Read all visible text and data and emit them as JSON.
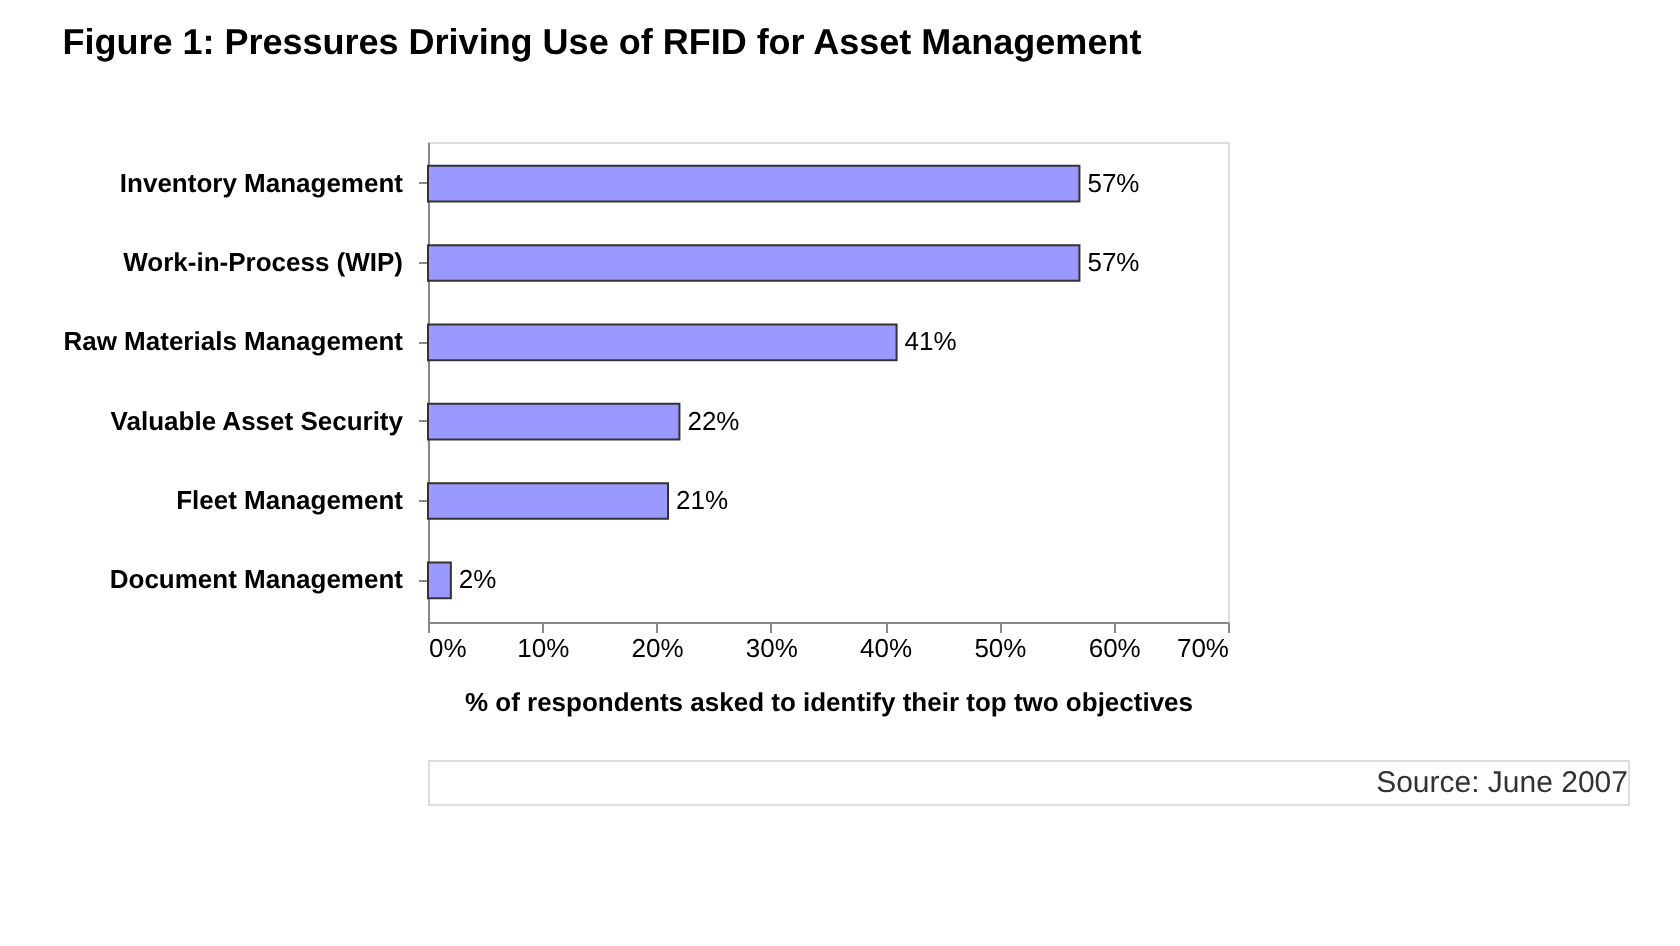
{
  "chart_data": {
    "type": "bar",
    "orientation": "horizontal",
    "title": "Figure 1: Pressures Driving Use of RFID for Asset Management",
    "categories": [
      "Inventory Management",
      "Work-in-Process (WIP)",
      "Raw Materials Management",
      "Valuable Asset Security",
      "Fleet Management",
      "Document Management"
    ],
    "values": [
      57,
      57,
      41,
      22,
      21,
      2
    ],
    "value_labels": [
      "57%",
      "57%",
      "41%",
      "22%",
      "21%",
      "2%"
    ],
    "color": "#9999ff",
    "xlabel": "% of respondents asked to identify their top two objectives",
    "xlim": [
      0,
      70
    ],
    "xticks": [
      {
        "value": 0,
        "label": "0%"
      },
      {
        "value": 10,
        "label": "10%"
      },
      {
        "value": 20,
        "label": "20%"
      },
      {
        "value": 30,
        "label": "30%"
      },
      {
        "value": 40,
        "label": "40%"
      },
      {
        "value": 50,
        "label": "50%"
      },
      {
        "value": 60,
        "label": "60%"
      },
      {
        "value": 70,
        "label": "70%"
      }
    ],
    "grid": false,
    "annotations": [
      "Source: June 2007"
    ]
  }
}
